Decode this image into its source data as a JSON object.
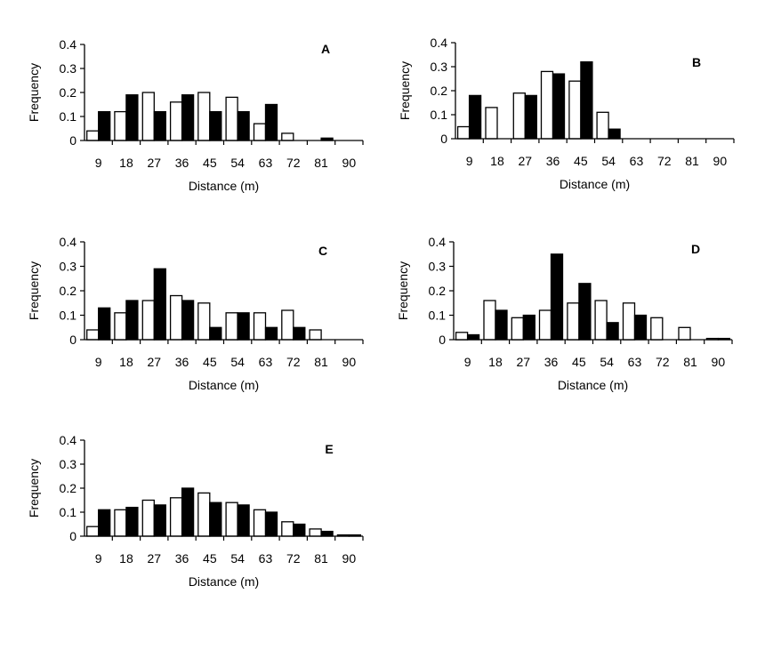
{
  "chart_data": [
    {
      "type": "bar",
      "panel_label": "A",
      "categories": [
        "9",
        "18",
        "27",
        "36",
        "45",
        "54",
        "63",
        "72",
        "81",
        "90"
      ],
      "series": [
        {
          "fill": "#ffffff",
          "values": [
            0.04,
            0.12,
            0.2,
            0.16,
            0.2,
            0.18,
            0.07,
            0.03,
            0.0,
            0
          ]
        },
        {
          "fill": "#000000",
          "values": [
            0.12,
            0.19,
            0.12,
            0.19,
            0.12,
            0.12,
            0.15,
            0,
            0.01,
            0
          ]
        }
      ],
      "xlabel": "Distance (m)",
      "ylabel": "Frequency",
      "yticks": [
        "0",
        "0.1",
        "0.2",
        "0.3",
        "0.4"
      ],
      "ylim": [
        0,
        0.4
      ],
      "grid": false,
      "legend": "none"
    },
    {
      "type": "bar",
      "panel_label": "B",
      "categories": [
        "9",
        "18",
        "27",
        "36",
        "45",
        "54",
        "63",
        "72",
        "81",
        "90"
      ],
      "series": [
        {
          "fill": "#ffffff",
          "values": [
            0.05,
            0.13,
            0.19,
            0.28,
            0.24,
            0.11,
            0,
            0,
            0,
            0
          ]
        },
        {
          "fill": "#000000",
          "values": [
            0.18,
            0,
            0.18,
            0.27,
            0.32,
            0.04,
            0,
            0,
            0,
            0
          ]
        }
      ],
      "xlabel": "Distance (m)",
      "ylabel": "Frequency",
      "yticks": [
        "0",
        "0.1",
        "0.2",
        "0.3",
        "0.4"
      ],
      "ylim": [
        0,
        0.4
      ],
      "grid": false,
      "legend": "none"
    },
    {
      "type": "bar",
      "panel_label": "C",
      "categories": [
        "9",
        "18",
        "27",
        "36",
        "45",
        "54",
        "63",
        "72",
        "81",
        "90"
      ],
      "series": [
        {
          "fill": "#ffffff",
          "values": [
            0.04,
            0.11,
            0.16,
            0.18,
            0.15,
            0.11,
            0.11,
            0.12,
            0.04,
            0
          ]
        },
        {
          "fill": "#000000",
          "values": [
            0.13,
            0.16,
            0.29,
            0.16,
            0.05,
            0.11,
            0.05,
            0.05,
            0,
            0
          ]
        }
      ],
      "xlabel": "Distance (m)",
      "ylabel": "Frequency",
      "yticks": [
        "0",
        "0.1",
        "0.2",
        "0.3",
        "0.4"
      ],
      "ylim": [
        0,
        0.4
      ],
      "grid": false,
      "legend": "none"
    },
    {
      "type": "bar",
      "panel_label": "D",
      "categories": [
        "9",
        "18",
        "27",
        "36",
        "45",
        "54",
        "63",
        "72",
        "81",
        "90"
      ],
      "series": [
        {
          "fill": "#ffffff",
          "values": [
            0.03,
            0.16,
            0.09,
            0.12,
            0.15,
            0.16,
            0.15,
            0.09,
            0.05,
            0.005
          ]
        },
        {
          "fill": "#000000",
          "values": [
            0.02,
            0.12,
            0.1,
            0.35,
            0.23,
            0.07,
            0.1,
            0,
            0,
            0.005
          ]
        }
      ],
      "xlabel": "Distance (m)",
      "ylabel": "Frequency",
      "yticks": [
        "0",
        "0.1",
        "0.2",
        "0.3",
        "0.4"
      ],
      "ylim": [
        0,
        0.4
      ],
      "grid": false,
      "legend": "none"
    },
    {
      "type": "bar",
      "panel_label": "E",
      "categories": [
        "9",
        "18",
        "27",
        "36",
        "45",
        "54",
        "63",
        "72",
        "81",
        "90"
      ],
      "series": [
        {
          "fill": "#ffffff",
          "values": [
            0.04,
            0.11,
            0.15,
            0.16,
            0.18,
            0.14,
            0.11,
            0.06,
            0.03,
            0.005
          ]
        },
        {
          "fill": "#000000",
          "values": [
            0.11,
            0.12,
            0.13,
            0.2,
            0.14,
            0.13,
            0.1,
            0.05,
            0.02,
            0.005
          ]
        }
      ],
      "xlabel": "Distance (m)",
      "ylabel": "Frequency",
      "yticks": [
        "0",
        "0.1",
        "0.2",
        "0.3",
        "0.4"
      ],
      "ylim": [
        0,
        0.4
      ],
      "grid": false,
      "legend": "none"
    }
  ]
}
